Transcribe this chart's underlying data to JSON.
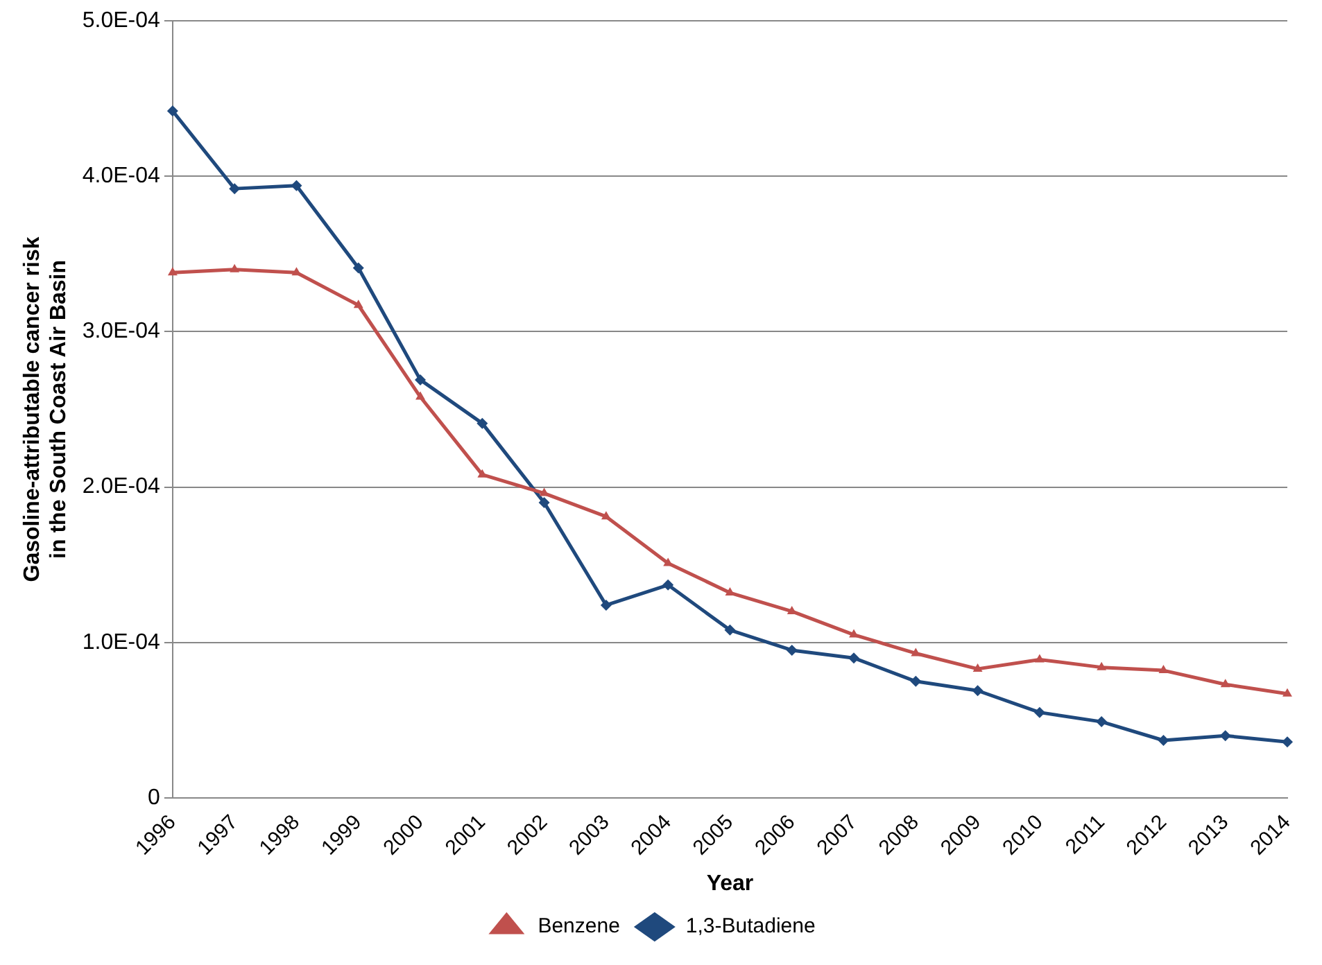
{
  "chart_data": {
    "type": "line",
    "xlabel": "Year",
    "ylabel": "Gasoline-attributable cancer risk\nin the South Coast Air Basin",
    "categories": [
      "1996",
      "1997",
      "1998",
      "1999",
      "2000",
      "2001",
      "2002",
      "2003",
      "2004",
      "2005",
      "2006",
      "2007",
      "2008",
      "2009",
      "2010",
      "2011",
      "2012",
      "2013",
      "2014"
    ],
    "series": [
      {
        "name": "Benzene",
        "color": "#c0504d",
        "marker": "triangle",
        "values": [
          0.000338,
          0.00034,
          0.000338,
          0.000317,
          0.000258,
          0.000208,
          0.000196,
          0.000181,
          0.000151,
          0.000132,
          0.00012,
          0.000105,
          9.3e-05,
          8.3e-05,
          8.9e-05,
          8.4e-05,
          8.2e-05,
          7.3e-05,
          6.7e-05
        ]
      },
      {
        "name": "1,3-Butadiene",
        "color": "#1f497d",
        "marker": "diamond",
        "values": [
          0.000442,
          0.000392,
          0.000394,
          0.000341,
          0.000269,
          0.000241,
          0.00019,
          0.000124,
          0.000137,
          0.000108,
          9.5e-05,
          9e-05,
          7.5e-05,
          6.9e-05,
          5.5e-05,
          4.9e-05,
          3.7e-05,
          4e-05,
          3.6e-05
        ]
      }
    ],
    "ylim": [
      0,
      0.0005
    ],
    "yticks": [
      {
        "value": 0,
        "label": "0"
      },
      {
        "value": 0.0001,
        "label": "1.0E-04"
      },
      {
        "value": 0.0002,
        "label": "2.0E-04"
      },
      {
        "value": 0.0003,
        "label": "3.0E-04"
      },
      {
        "value": 0.0004,
        "label": "4.0E-04"
      },
      {
        "value": 0.0005,
        "label": "5.0E-04"
      }
    ],
    "grid": "y",
    "legend": "bottom",
    "line_style": "solid"
  }
}
